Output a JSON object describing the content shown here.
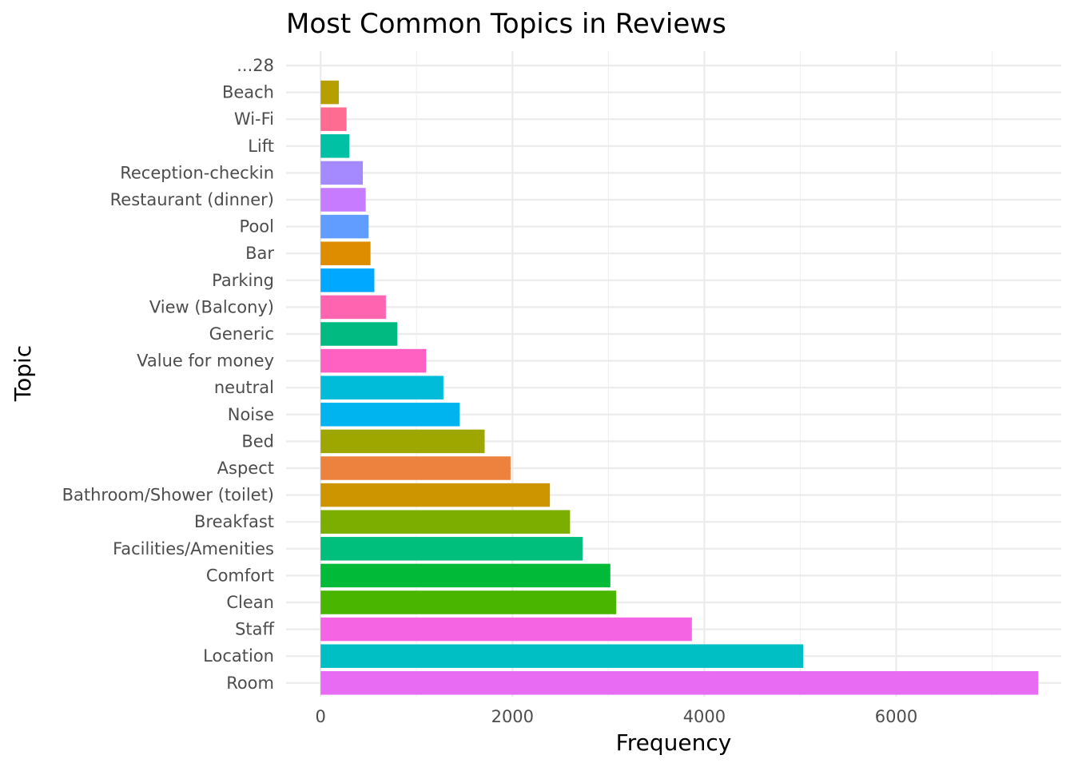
{
  "chart_data": {
    "type": "bar",
    "orientation": "horizontal",
    "title": "Most Common Topics in Reviews",
    "xlabel": "Frequency",
    "ylabel": "Topic",
    "xlim": [
      -360,
      7720
    ],
    "x_ticks": [
      0,
      2000,
      4000,
      6000
    ],
    "x_tick_labels": [
      "0",
      "2000",
      "4000",
      "6000"
    ],
    "grid": true,
    "legend": "none",
    "categories": [
      "...28",
      "Beach",
      "Wi-Fi",
      "Lift",
      "Reception-checkin",
      "Restaurant (dinner)",
      "Pool",
      "Bar",
      "Parking",
      "View (Balcony)",
      "Generic",
      "Value for money",
      "neutral",
      "Noise",
      "Bed",
      "Aspect",
      "Bathroom/Shower (toilet)",
      "Breakfast",
      "Facilities/Amenities",
      "Comfort",
      "Clean",
      "Staff",
      "Location",
      "Room"
    ],
    "values": [
      0,
      190,
      270,
      300,
      440,
      470,
      500,
      520,
      560,
      680,
      800,
      1100,
      1280,
      1450,
      1710,
      1980,
      2390,
      2600,
      2730,
      3020,
      3080,
      3870,
      5030,
      7480
    ],
    "colors": [
      "#F8766D",
      "#B79F00",
      "#FF6C91",
      "#00C1A3",
      "#A58AFF",
      "#C77CFF",
      "#619CFF",
      "#DE8C00",
      "#00A9FF",
      "#FF64B0",
      "#00BA81",
      "#FF61C3",
      "#00BCD8",
      "#00B4F0",
      "#9DA700",
      "#ED813E",
      "#CD9600",
      "#7CAE00",
      "#00BF7D",
      "#00BA38",
      "#49B500",
      "#F564E3",
      "#00BFC4",
      "#E76BF3"
    ]
  }
}
